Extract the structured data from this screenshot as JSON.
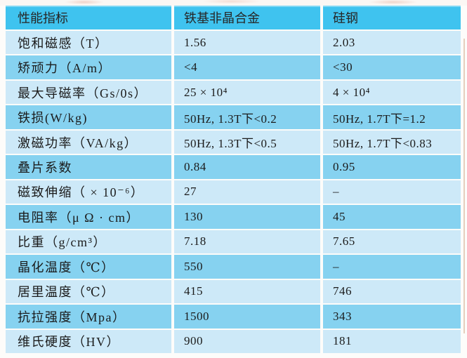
{
  "table": {
    "headers": [
      "性能指标",
      "铁基非晶合金",
      "硅钢"
    ],
    "rows": [
      {
        "label": "饱和磁感（T）",
        "amorphous": "1.56",
        "silicon_steel": "2.03"
      },
      {
        "label": "矫顽力（A/m）",
        "amorphous": "<4",
        "silicon_steel": "<30"
      },
      {
        "label": "最大导磁率（Gs/0s）",
        "amorphous": "25 × 10⁴",
        "silicon_steel": "4 × 10⁴"
      },
      {
        "label": "铁损(W/kg)",
        "amorphous": "50Hz, 1.3T下<0.2",
        "silicon_steel": "50Hz, 1.7T下=1.2"
      },
      {
        "label": "激磁功率（VA/kg）",
        "amorphous": "50Hz, 1.3T下<0.5",
        "silicon_steel": "50Hz, 1.7T下<0.83"
      },
      {
        "label": "叠片系数",
        "amorphous": "0.84",
        "silicon_steel": "0.95"
      },
      {
        "label": "磁致伸缩（ × 10⁻⁶）",
        "amorphous": "27",
        "silicon_steel": "–"
      },
      {
        "label": "电阻率（μ Ω · cm）",
        "amorphous": "130",
        "silicon_steel": "45"
      },
      {
        "label": "比重（g/cm³）",
        "amorphous": "7.18",
        "silicon_steel": "7.65"
      },
      {
        "label": "晶化温度（℃）",
        "amorphous": "550",
        "silicon_steel": "–"
      },
      {
        "label": "居里温度（℃）",
        "amorphous": "415",
        "silicon_steel": "746"
      },
      {
        "label": "抗拉强度（Mpa）",
        "amorphous": "1500",
        "silicon_steel": "343"
      },
      {
        "label": "维氏硬度（HV）",
        "amorphous": "900",
        "silicon_steel": "181"
      }
    ],
    "colors": {
      "header_bg": "#3fc3ef",
      "row_light_bg": "#cde9f8",
      "row_medium_bg": "#86d2f0",
      "separator": "#ffffff",
      "text": "#1b1b1b"
    }
  }
}
